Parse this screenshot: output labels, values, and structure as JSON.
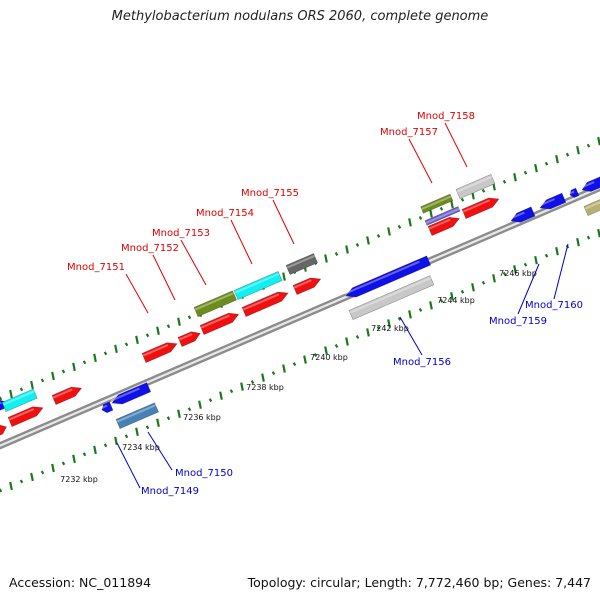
{
  "title": "Methylobacterium nodulans ORS 2060, complete genome",
  "footer": {
    "accession": "Accession: NC_011894",
    "stats": "Topology: circular; Length: 7,772,460 bp; Genes: 7,447"
  },
  "colors": {
    "forward_label": "#e00000",
    "reverse_label": "#0000c8",
    "tick": "#1a7a1a",
    "backbone": "#8c8c8c"
  },
  "scale": {
    "labels": [
      "7232 kbp",
      "7234 kbp",
      "7236 kbp",
      "7238 kbp",
      "7240 kbp",
      "7242 kbp",
      "7244 kbp",
      "7246 kbp"
    ]
  },
  "genes": {
    "forward": [
      "Mnod_7151",
      "Mnod_7152",
      "Mnod_7153",
      "Mnod_7154",
      "Mnod_7155",
      "Mnod_7157",
      "Mnod_7158"
    ],
    "reverse": [
      "Mnod_7149",
      "Mnod_7150",
      "Mnod_7156",
      "Mnod_7159",
      "Mnod_7160"
    ]
  }
}
